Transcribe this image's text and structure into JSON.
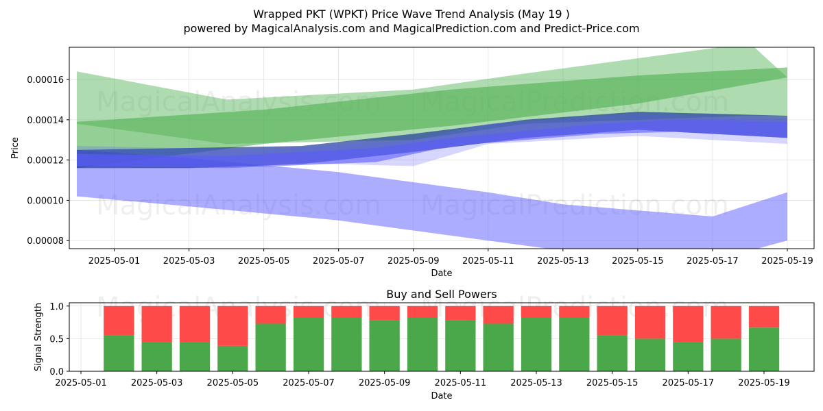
{
  "title_line1": "Wrapped PKT (WPKT) Price Wave Trend Analysis (May 19 )",
  "title_line2": "powered by MagicalAnalysis.com and MagicalPrediction.com and Predict-Price.com",
  "watermarks": [
    "MagicalAnalysis.com",
    "MagicalPrediction.com"
  ],
  "colors": {
    "buy": "#4aa84a",
    "sell": "#ff4a4a",
    "green_band": "#4caf50",
    "blue_band": "#5c5cff",
    "navy": "#1f3c99"
  },
  "chart_data": [
    {
      "type": "area",
      "xlabel": "Date",
      "ylabel": "Price",
      "ylim": [
        7.6e-05,
        0.000176
      ],
      "xlim": [
        "2025-04-30",
        "2025-05-19"
      ],
      "x_ticks": [
        "2025-05-01",
        "2025-05-03",
        "2025-05-05",
        "2025-05-07",
        "2025-05-09",
        "2025-05-11",
        "2025-05-13",
        "2025-05-15",
        "2025-05-17",
        "2025-05-19"
      ],
      "y_ticks": [
        8e-05,
        0.0001,
        0.00012,
        0.00014,
        0.00016
      ],
      "grid": true,
      "bands": [
        {
          "color": "green",
          "opacity": 0.45,
          "upper": [
            [
              "2025-04-30",
              0.000164
            ],
            [
              "2025-05-04",
              0.00015
            ],
            [
              "2025-05-09",
              0.000155
            ],
            [
              "2025-05-12",
              0.000163
            ],
            [
              "2025-05-18",
              0.000178
            ],
            [
              "2025-05-19",
              0.000161
            ]
          ],
          "lower": [
            [
              "2025-04-30",
              0.000138
            ],
            [
              "2025-05-04",
              0.000128
            ],
            [
              "2025-05-09",
              0.00013
            ],
            [
              "2025-05-12",
              0.000138
            ],
            [
              "2025-05-18",
              0.000142
            ],
            [
              "2025-05-19",
              0.000142
            ]
          ]
        },
        {
          "color": "green",
          "opacity": 0.6,
          "upper": [
            [
              "2025-04-30",
              0.000139
            ],
            [
              "2025-05-05",
              0.000145
            ],
            [
              "2025-05-10",
              0.000155
            ],
            [
              "2025-05-15",
              0.000162
            ],
            [
              "2025-05-19",
              0.000166
            ]
          ],
          "lower": [
            [
              "2025-04-30",
              0.000116
            ],
            [
              "2025-05-05",
              0.000128
            ],
            [
              "2025-05-10",
              0.000137
            ],
            [
              "2025-05-15",
              0.000148
            ],
            [
              "2025-05-19",
              0.000161
            ]
          ]
        },
        {
          "color": "blue",
          "opacity": 0.5,
          "upper": [
            [
              "2025-04-30",
              0.000125
            ],
            [
              "2025-05-03",
              0.000121
            ],
            [
              "2025-05-07",
              0.000114
            ],
            [
              "2025-05-11",
              0.000104
            ],
            [
              "2025-05-13",
              9.8e-05
            ],
            [
              "2025-05-17",
              9.2e-05
            ],
            [
              "2025-05-19",
              0.000104
            ]
          ],
          "lower": [
            [
              "2025-04-30",
              0.000102
            ],
            [
              "2025-05-03",
              9.7e-05
            ],
            [
              "2025-05-07",
              9e-05
            ],
            [
              "2025-05-11",
              8e-05
            ],
            [
              "2025-05-13",
              7.5e-05
            ],
            [
              "2025-05-17",
              7e-05
            ],
            [
              "2025-05-19",
              8e-05
            ]
          ]
        },
        {
          "color": "navy",
          "opacity": 0.7,
          "upper": [
            [
              "2025-04-30",
              0.000125
            ],
            [
              "2025-05-03",
              0.000126
            ],
            [
              "2025-05-06",
              0.000127
            ],
            [
              "2025-05-09",
              0.000133
            ],
            [
              "2025-05-12",
              0.00014
            ],
            [
              "2025-05-15",
              0.000144
            ],
            [
              "2025-05-19",
              0.000142
            ]
          ],
          "lower": [
            [
              "2025-04-30",
              0.000116
            ],
            [
              "2025-05-03",
              0.000116
            ],
            [
              "2025-05-06",
              0.000118
            ],
            [
              "2025-05-09",
              0.000124
            ],
            [
              "2025-05-12",
              0.000131
            ],
            [
              "2025-05-15",
              0.000135
            ],
            [
              "2025-05-19",
              0.000131
            ]
          ]
        },
        {
          "color": "blue",
          "opacity": 0.6,
          "upper": [
            [
              "2025-04-30",
              0.000123
            ],
            [
              "2025-05-04",
              0.000122
            ],
            [
              "2025-05-08",
              0.000126
            ],
            [
              "2025-05-10",
              0.000131
            ],
            [
              "2025-05-14",
              0.000138
            ],
            [
              "2025-05-16",
              0.00014
            ],
            [
              "2025-05-19",
              0.000139
            ]
          ],
          "lower": [
            [
              "2025-04-30",
              0.000117
            ],
            [
              "2025-05-04",
              0.000116
            ],
            [
              "2025-05-08",
              0.000119
            ],
            [
              "2025-05-10",
              0.000127
            ],
            [
              "2025-05-14",
              0.000133
            ],
            [
              "2025-05-16",
              0.000134
            ],
            [
              "2025-05-19",
              0.000131
            ]
          ]
        },
        {
          "color": "blue",
          "opacity": 0.25,
          "upper": [
            [
              "2025-04-30",
              0.000127
            ],
            [
              "2025-05-05",
              0.000125
            ],
            [
              "2025-05-09",
              0.00013
            ],
            [
              "2025-05-11",
              0.000138
            ],
            [
              "2025-05-15",
              0.000143
            ],
            [
              "2025-05-19",
              0.00014
            ]
          ],
          "lower": [
            [
              "2025-04-30",
              0.000117
            ],
            [
              "2025-05-05",
              0.000119
            ],
            [
              "2025-05-09",
              0.000117
            ],
            [
              "2025-05-11",
              0.000128
            ],
            [
              "2025-05-15",
              0.000132
            ],
            [
              "2025-05-19",
              0.000128
            ]
          ]
        }
      ]
    },
    {
      "type": "bar",
      "title": "Buy and Sell Powers",
      "xlabel": "Date",
      "ylabel": "Signal Strength",
      "ylim": [
        0,
        1.05
      ],
      "xlim": [
        "2025-04-30",
        "2025-05-20"
      ],
      "x_ticks": [
        "2025-05-01",
        "2025-05-03",
        "2025-05-05",
        "2025-05-07",
        "2025-05-09",
        "2025-05-11",
        "2025-05-13",
        "2025-05-15",
        "2025-05-17",
        "2025-05-19"
      ],
      "y_ticks": [
        0.0,
        0.5,
        1.0
      ],
      "y_tick_labels": [
        "0.0",
        "0.5",
        "1.0"
      ],
      "categories": [
        "2025-05-02",
        "2025-05-03",
        "2025-05-04",
        "2025-05-05",
        "2025-05-06",
        "2025-05-07",
        "2025-05-08",
        "2025-05-09",
        "2025-05-10",
        "2025-05-11",
        "2025-05-12",
        "2025-05-13",
        "2025-05-14",
        "2025-05-15",
        "2025-05-16",
        "2025-05-17",
        "2025-05-18",
        "2025-05-19"
      ],
      "series": [
        {
          "values": [
            0.55,
            0.45,
            0.45,
            0.39,
            0.73,
            0.83,
            0.83,
            0.78,
            0.83,
            0.78,
            0.73,
            0.83,
            0.83,
            0.55,
            0.5,
            0.45,
            0.5,
            0.67
          ]
        },
        {
          "values": [
            0.45,
            0.55,
            0.55,
            0.61,
            0.27,
            0.17,
            0.17,
            0.22,
            0.17,
            0.22,
            0.27,
            0.17,
            0.17,
            0.45,
            0.5,
            0.55,
            0.5,
            0.33
          ]
        }
      ],
      "grid": true
    }
  ]
}
